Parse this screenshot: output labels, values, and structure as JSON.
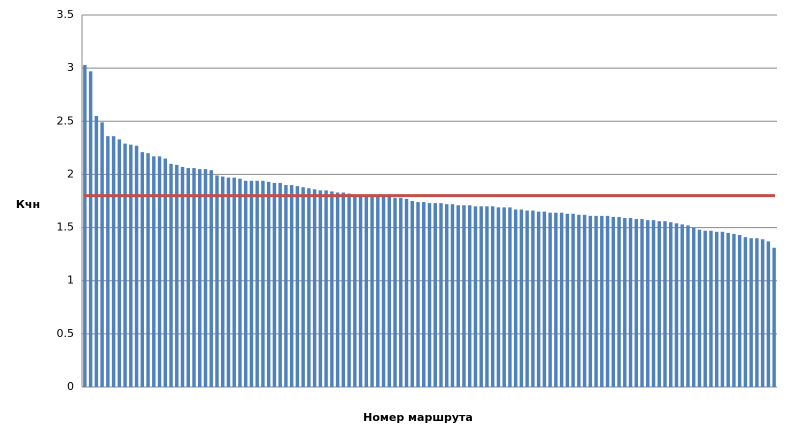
{
  "chart_data": {
    "type": "bar",
    "y_label": "Кчн",
    "x_label": "Номер маршрута",
    "color": "#4f81bd",
    "values": [
      3.03,
      2.97,
      2.55,
      2.49,
      2.36,
      2.36,
      2.33,
      2.29,
      2.28,
      2.27,
      2.21,
      2.2,
      2.17,
      2.17,
      2.15,
      2.1,
      2.09,
      2.07,
      2.06,
      2.06,
      2.05,
      2.05,
      2.04,
      1.99,
      1.98,
      1.97,
      1.97,
      1.96,
      1.94,
      1.94,
      1.94,
      1.94,
      1.93,
      1.92,
      1.92,
      1.9,
      1.9,
      1.89,
      1.88,
      1.87,
      1.86,
      1.85,
      1.85,
      1.84,
      1.83,
      1.83,
      1.82,
      1.81,
      1.81,
      1.8,
      1.8,
      1.8,
      1.79,
      1.79,
      1.78,
      1.78,
      1.77,
      1.75,
      1.74,
      1.74,
      1.73,
      1.73,
      1.73,
      1.72,
      1.72,
      1.71,
      1.71,
      1.71,
      1.7,
      1.7,
      1.7,
      1.7,
      1.69,
      1.69,
      1.69,
      1.67,
      1.67,
      1.66,
      1.66,
      1.65,
      1.65,
      1.64,
      1.64,
      1.64,
      1.63,
      1.63,
      1.62,
      1.62,
      1.61,
      1.61,
      1.61,
      1.61,
      1.6,
      1.6,
      1.59,
      1.59,
      1.58,
      1.58,
      1.57,
      1.57,
      1.56,
      1.56,
      1.55,
      1.54,
      1.53,
      1.52,
      1.5,
      1.48,
      1.47,
      1.47,
      1.46,
      1.46,
      1.45,
      1.44,
      1.43,
      1.41,
      1.4,
      1.4,
      1.39,
      1.37,
      1.31
    ],
    "reference_line": {
      "value": 1.8,
      "color": "#c0504d"
    },
    "ylim": [
      0,
      3.5
    ],
    "yticks": [
      0,
      0.5,
      1,
      1.5,
      2,
      2.5,
      3,
      3.5
    ],
    "grid": true
  }
}
